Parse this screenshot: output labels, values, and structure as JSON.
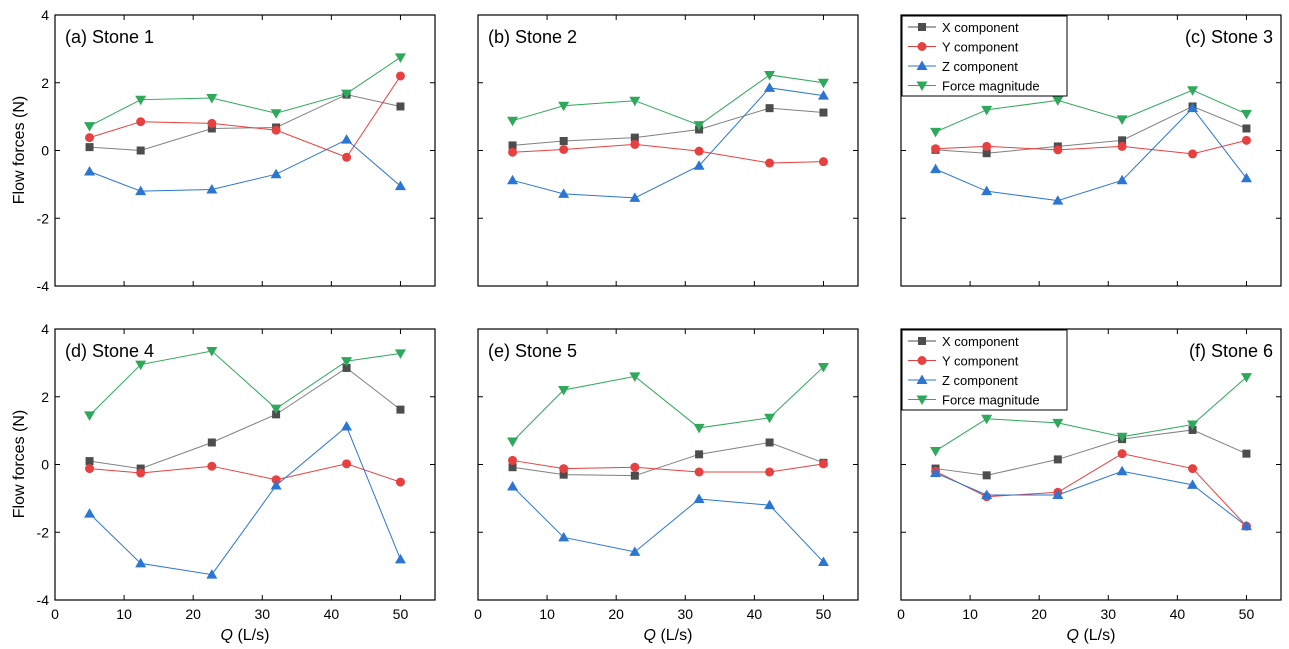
{
  "figure": {
    "ylabel": "Flow forces (N)",
    "xlabel_italic": "Q",
    "xlabel_units": " (L/s)"
  },
  "colors": {
    "X": "#4d4d4d",
    "Y": "#e84040",
    "Z": "#2b76d2",
    "F": "#2ea85a",
    "connector": "#808080"
  },
  "legend_labels": [
    "X component",
    "Y component",
    "Z component",
    "Force magnitude"
  ],
  "chart_data": [
    {
      "type": "line",
      "title": "(a) Stone 1",
      "x": [
        5,
        12.4,
        22.7,
        32,
        42.2,
        50
      ],
      "xlim": [
        0,
        55
      ],
      "ylim": [
        -4,
        4
      ],
      "xticks": [
        0,
        10,
        20,
        30,
        40,
        50
      ],
      "yticks": [
        -4,
        -2,
        0,
        2,
        4
      ],
      "series": [
        {
          "name": "X component",
          "key": "X",
          "values": [
            0.1,
            0.0,
            0.65,
            0.68,
            1.65,
            1.3
          ]
        },
        {
          "name": "Y component",
          "key": "Y",
          "values": [
            0.38,
            0.85,
            0.8,
            0.6,
            -0.2,
            2.2
          ]
        },
        {
          "name": "Z component",
          "key": "Z",
          "values": [
            -0.62,
            -1.2,
            -1.15,
            -0.7,
            0.32,
            -1.05
          ]
        },
        {
          "name": "Force magnitude",
          "key": "F",
          "values": [
            0.72,
            1.5,
            1.55,
            1.1,
            1.68,
            2.75
          ]
        }
      ]
    },
    {
      "type": "line",
      "title": "(b) Stone 2",
      "x": [
        5,
        12.4,
        22.7,
        32,
        42.2,
        50
      ],
      "xlim": [
        0,
        55
      ],
      "ylim": [
        -4,
        4
      ],
      "xticks": [
        0,
        10,
        20,
        30,
        40,
        50
      ],
      "yticks": [
        -4,
        -2,
        0,
        2,
        4
      ],
      "series": [
        {
          "name": "X component",
          "key": "X",
          "values": [
            0.15,
            0.28,
            0.38,
            0.62,
            1.25,
            1.12
          ]
        },
        {
          "name": "Y component",
          "key": "Y",
          "values": [
            -0.05,
            0.03,
            0.18,
            -0.02,
            -0.37,
            -0.33
          ]
        },
        {
          "name": "Z component",
          "key": "Z",
          "values": [
            -0.88,
            -1.28,
            -1.4,
            -0.45,
            1.85,
            1.62
          ]
        },
        {
          "name": "Force magnitude",
          "key": "F",
          "values": [
            0.88,
            1.32,
            1.47,
            0.75,
            2.23,
            2.0
          ]
        }
      ]
    },
    {
      "type": "line",
      "title": "(c) Stone 3",
      "x": [
        5,
        12.4,
        22.7,
        32,
        42.2,
        50
      ],
      "xlim": [
        0,
        55
      ],
      "ylim": [
        -4,
        4
      ],
      "xticks": [
        0,
        10,
        20,
        30,
        40,
        50
      ],
      "yticks": [
        -4,
        -2,
        0,
        2,
        4
      ],
      "legend": "top-left",
      "series": [
        {
          "name": "X component",
          "key": "X",
          "values": [
            0.02,
            -0.08,
            0.12,
            0.3,
            1.3,
            0.65
          ]
        },
        {
          "name": "Y component",
          "key": "Y",
          "values": [
            0.05,
            0.12,
            0.02,
            0.12,
            -0.1,
            0.3
          ]
        },
        {
          "name": "Z component",
          "key": "Z",
          "values": [
            -0.55,
            -1.2,
            -1.48,
            -0.88,
            1.25,
            -0.82
          ]
        },
        {
          "name": "Force magnitude",
          "key": "F",
          "values": [
            0.55,
            1.2,
            1.48,
            0.92,
            1.78,
            1.08
          ]
        }
      ]
    },
    {
      "type": "line",
      "title": "(d) Stone 4",
      "x": [
        5,
        12.4,
        22.7,
        32,
        42.2,
        50
      ],
      "xlim": [
        0,
        55
      ],
      "ylim": [
        -4,
        4
      ],
      "xticks": [
        0,
        10,
        20,
        30,
        40,
        50
      ],
      "yticks": [
        -4,
        -2,
        0,
        2,
        4
      ],
      "series": [
        {
          "name": "X component",
          "key": "X",
          "values": [
            0.1,
            -0.12,
            0.65,
            1.48,
            2.85,
            1.62
          ]
        },
        {
          "name": "Y component",
          "key": "Y",
          "values": [
            -0.12,
            -0.25,
            -0.05,
            -0.45,
            0.02,
            -0.52
          ]
        },
        {
          "name": "Z component",
          "key": "Z",
          "values": [
            -1.45,
            -2.92,
            -3.25,
            -0.62,
            1.12,
            -2.8
          ]
        },
        {
          "name": "Force magnitude",
          "key": "F",
          "values": [
            1.45,
            2.95,
            3.35,
            1.65,
            3.05,
            3.28
          ]
        }
      ]
    },
    {
      "type": "line",
      "title": "(e) Stone 5",
      "x": [
        5,
        12.4,
        22.7,
        32,
        42.2,
        50
      ],
      "xlim": [
        0,
        55
      ],
      "ylim": [
        -4,
        4
      ],
      "xticks": [
        0,
        10,
        20,
        30,
        40,
        50
      ],
      "yticks": [
        -4,
        -2,
        0,
        2,
        4
      ],
      "series": [
        {
          "name": "X component",
          "key": "X",
          "values": [
            -0.08,
            -0.3,
            -0.33,
            0.3,
            0.65,
            0.05
          ]
        },
        {
          "name": "Y component",
          "key": "Y",
          "values": [
            0.12,
            -0.12,
            -0.08,
            -0.22,
            -0.22,
            0.02
          ]
        },
        {
          "name": "Z component",
          "key": "Z",
          "values": [
            -0.65,
            -2.15,
            -2.58,
            -1.02,
            -1.2,
            -2.88
          ]
        },
        {
          "name": "Force magnitude",
          "key": "F",
          "values": [
            0.68,
            2.2,
            2.6,
            1.08,
            1.38,
            2.88
          ]
        }
      ]
    },
    {
      "type": "line",
      "title": "(f) Stone 6",
      "x": [
        5,
        12.4,
        22.7,
        32,
        42.2,
        50
      ],
      "xlim": [
        0,
        55
      ],
      "ylim": [
        -4,
        4
      ],
      "xticks": [
        0,
        10,
        20,
        30,
        40,
        50
      ],
      "yticks": [
        -4,
        -2,
        0,
        2,
        4
      ],
      "legend": "top-left",
      "series": [
        {
          "name": "X component",
          "key": "X",
          "values": [
            -0.12,
            -0.32,
            0.15,
            0.75,
            1.02,
            0.32
          ]
        },
        {
          "name": "Y component",
          "key": "Y",
          "values": [
            -0.2,
            -0.95,
            -0.82,
            0.32,
            -0.12,
            -1.82
          ]
        },
        {
          "name": "Z component",
          "key": "Z",
          "values": [
            -0.25,
            -0.9,
            -0.9,
            -0.2,
            -0.6,
            -1.82
          ]
        },
        {
          "name": "Force magnitude",
          "key": "F",
          "values": [
            0.4,
            1.35,
            1.23,
            0.82,
            1.18,
            2.58
          ]
        }
      ]
    }
  ]
}
